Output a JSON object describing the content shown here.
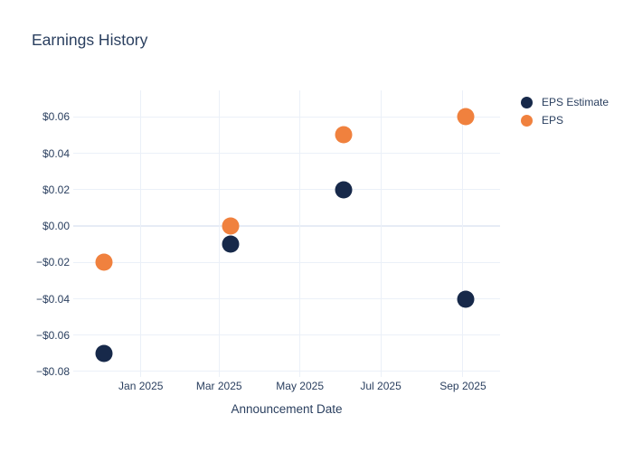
{
  "title": "Earnings History",
  "colors": {
    "eps_estimate": "#17294a",
    "eps": "#f0813e",
    "grid": "#ebf0f8",
    "zeroline": "#e6ecf5",
    "text": "#2a3f5f",
    "background": "#ffffff"
  },
  "legend": {
    "items": [
      {
        "label": "EPS Estimate",
        "color": "#17294a"
      },
      {
        "label": "EPS",
        "color": "#f0813e"
      }
    ]
  },
  "chart_data": {
    "type": "scatter",
    "title": "Earnings History",
    "xlabel": "Announcement Date",
    "ylabel": "",
    "grid": true,
    "legend_position": "top-right-outside",
    "x_range": [
      "2024-11-11",
      "2025-09-29"
    ],
    "y_range": [
      -0.083,
      0.0746
    ],
    "x_ticks": [
      {
        "label": "Jan 2025",
        "date": "2025-01-01"
      },
      {
        "label": "Mar 2025",
        "date": "2025-03-01"
      },
      {
        "label": "May 2025",
        "date": "2025-05-01"
      },
      {
        "label": "Jul 2025",
        "date": "2025-07-01"
      },
      {
        "label": "Sep 2025",
        "date": "2025-09-01"
      }
    ],
    "y_ticks": [
      {
        "label": "$0.06",
        "value": 0.06
      },
      {
        "label": "$0.04",
        "value": 0.04
      },
      {
        "label": "$0.02",
        "value": 0.02
      },
      {
        "label": "$0.00",
        "value": 0.0
      },
      {
        "label": "−$0.02",
        "value": -0.02
      },
      {
        "label": "−$0.04",
        "value": -0.04
      },
      {
        "label": "−$0.06",
        "value": -0.06
      },
      {
        "label": "−$0.08",
        "value": -0.08
      }
    ],
    "series": [
      {
        "name": "EPS Estimate",
        "color": "#17294a",
        "points": [
          {
            "date": "2024-12-04",
            "value": -0.07
          },
          {
            "date": "2025-03-10",
            "value": -0.01
          },
          {
            "date": "2025-06-03",
            "value": 0.02
          },
          {
            "date": "2025-09-03",
            "value": -0.04
          }
        ]
      },
      {
        "name": "EPS",
        "color": "#f0813e",
        "points": [
          {
            "date": "2024-12-04",
            "value": -0.02
          },
          {
            "date": "2025-03-10",
            "value": 0.0
          },
          {
            "date": "2025-06-03",
            "value": 0.05
          },
          {
            "date": "2025-09-03",
            "value": 0.06
          }
        ]
      }
    ]
  }
}
